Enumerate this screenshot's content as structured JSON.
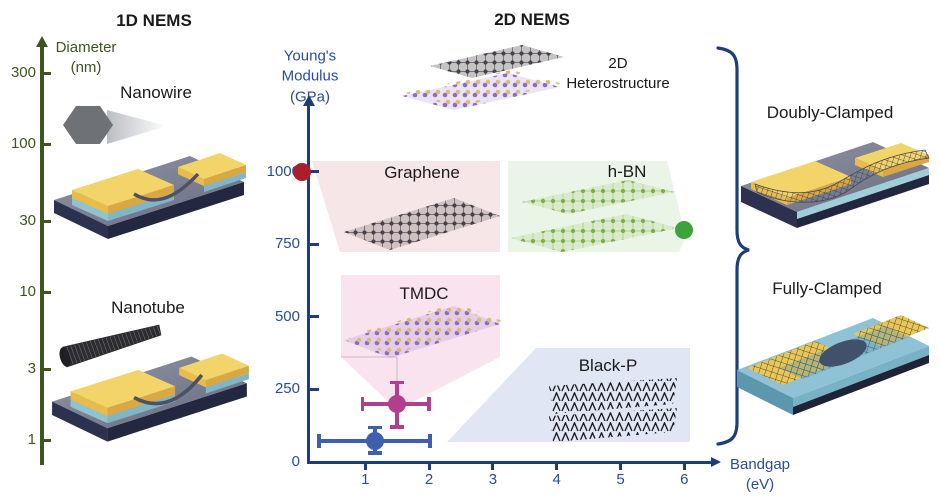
{
  "titles": {
    "left": "1D NEMS",
    "right": "2D NEMS"
  },
  "left_axis": {
    "label": "Diameter",
    "unit": "(nm)",
    "ticks": [
      300,
      100,
      30,
      10,
      3,
      1
    ]
  },
  "left_items": {
    "nanowire": "Nanowire",
    "nanotube": "Nanotube"
  },
  "chart_data": {
    "type": "scatter",
    "title": "2D NEMS",
    "xlabel": "Bandgap (eV)",
    "ylabel": "Young's Modulus (GPa)",
    "xlim": [
      0,
      6.5
    ],
    "ylim": [
      0,
      1100
    ],
    "x_ticks": [
      1,
      2,
      3,
      4,
      5,
      6
    ],
    "y_ticks": [
      0,
      250,
      500,
      750,
      1000
    ],
    "grid": false,
    "series": [
      {
        "name": "Graphene",
        "color": "#ab1f2d",
        "x": 0,
        "y": 1000,
        "r": 9
      },
      {
        "name": "h-BN",
        "color": "#3ba33a",
        "x": 6,
        "y": 800,
        "r": 9
      },
      {
        "name": "TMDC",
        "color": "#b0408e",
        "x": 1.5,
        "y": 200,
        "r": 9,
        "xerr": [
          0.95,
          2.0
        ],
        "yerr": [
          120,
          275
        ]
      },
      {
        "name": "Black-P",
        "color": "#3d5fae",
        "x": 1.15,
        "y": 72,
        "r": 9,
        "xerr": [
          0.27,
          2.02
        ],
        "yerr": [
          30,
          120
        ]
      }
    ],
    "regions": [
      "Graphene",
      "h-BN",
      "TMDC",
      "Black-P"
    ]
  },
  "plot_labels": {
    "graphene": "Graphene",
    "hbn": "h-BN",
    "tmdc": "TMDC",
    "blackp": "Black-P",
    "hetero_line1": "2D",
    "hetero_line2": "Heterostructure",
    "ylabel_l1": "Young's",
    "ylabel_l2": "Modulus",
    "ylabel_l3": "(GPa)",
    "xlabel_l1": "Bandgap",
    "xlabel_l2": "(eV)"
  },
  "right_labels": {
    "doubly": "Doubly-Clamped",
    "fully": "Fully-Clamped"
  },
  "colors": {
    "axis_navy": "#1d3e78",
    "label_blue": "#2a4c9a",
    "axis_green": "#3f5420",
    "region_graphene": "#f7e6e7",
    "region_hbn": "#eaf4e7",
    "region_tmdc": "#f9e3ef",
    "region_blackp": "#e1e6f4",
    "pad_yellow": "#f3d469",
    "layer_blue": "#a9d3de",
    "substrate_navy": "#23273f"
  }
}
